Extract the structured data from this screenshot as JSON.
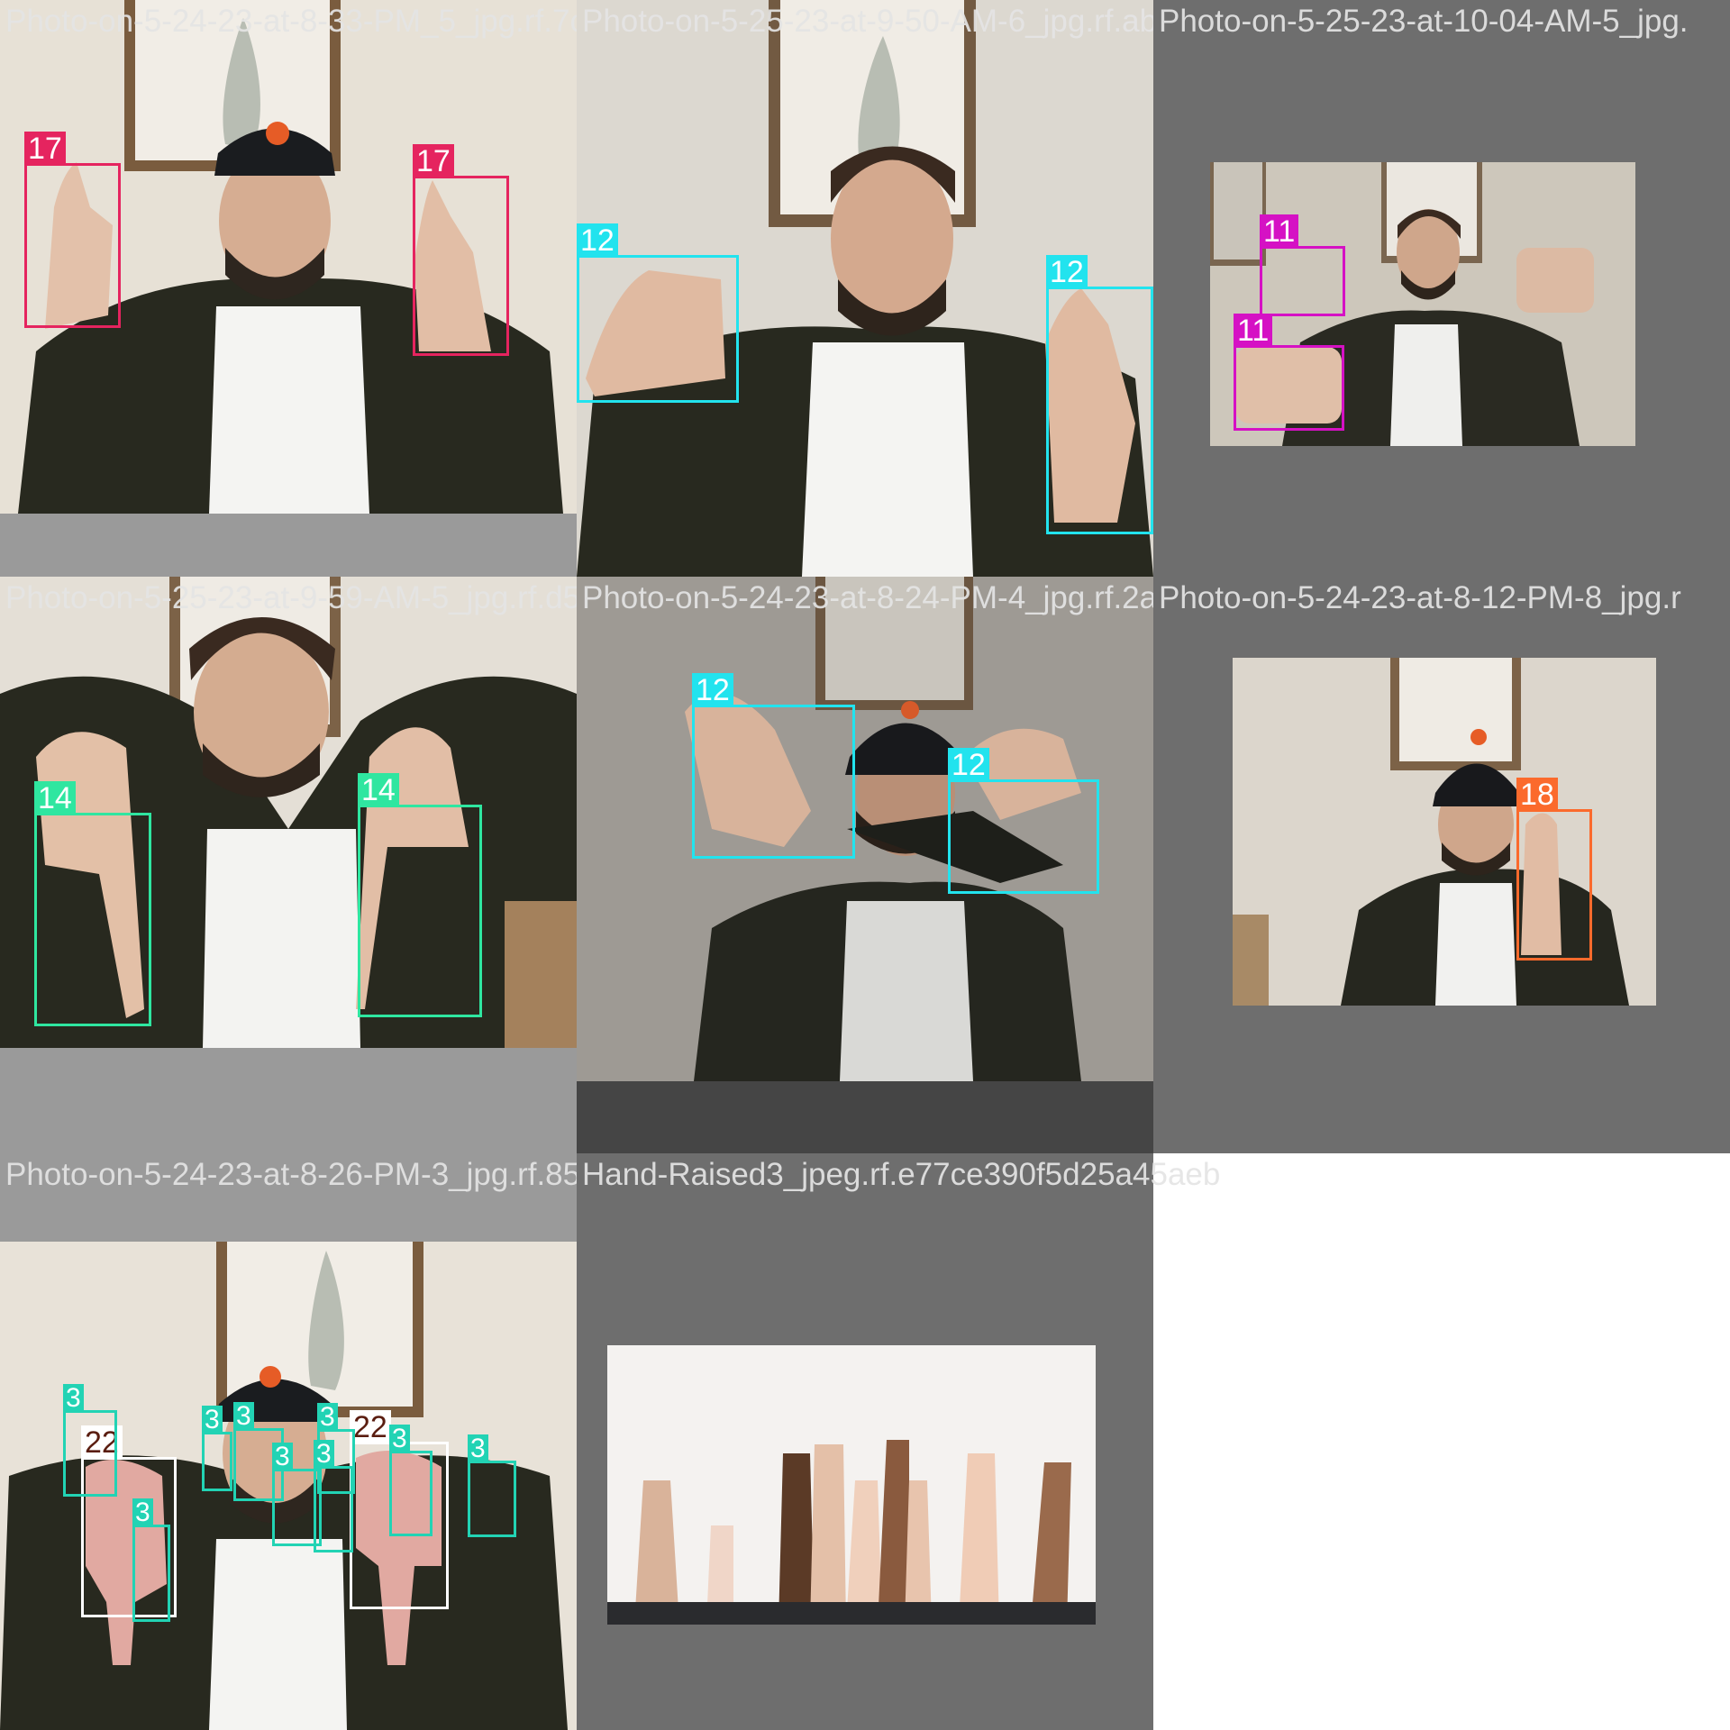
{
  "mosaic": {
    "tiles": [
      {
        "title": "Photo-on-5-24-23-at-8-33-PM_5_jpg.rf.7c8",
        "label_color": "#e5245f",
        "label_text_color": "#ffffff",
        "boxes": [
          "17",
          "17"
        ]
      },
      {
        "title": "Photo-on-5-25-23-at-9-50-AM-6_jpg.rf.abc",
        "label_color": "#22e3ee",
        "label_text_color": "#ffffff",
        "boxes": [
          "12",
          "12"
        ]
      },
      {
        "title": "Photo-on-5-25-23-at-10-04-AM-5_jpg.",
        "label_color": "#d511c4",
        "label_text_color": "#ffffff",
        "boxes": [
          "11",
          "11"
        ]
      },
      {
        "title": "Photo-on-5-25-23-at-9-59-AM-5_jpg.rf.d5",
        "label_color": "#2fe6a0",
        "label_text_color": "#ffffff",
        "boxes": [
          "14",
          "14"
        ]
      },
      {
        "title": "Photo-on-5-24-23-at-8-24-PM-4_jpg.rf.2a",
        "label_color": "#22e3ee",
        "label_text_color": "#ffffff",
        "boxes": [
          "12",
          "12"
        ]
      },
      {
        "title": "Photo-on-5-24-23-at-8-12-PM-8_jpg.r",
        "label_color": "#fb6a2c",
        "label_text_color": "#ffffff",
        "boxes": [
          "18"
        ]
      },
      {
        "title": "Photo-on-5-24-23-at-8-26-PM-3_jpg.rf.85",
        "label_color": "#ffffff",
        "label_text_color": "#5a1d10",
        "boxes": [
          "22",
          "22"
        ]
      },
      {
        "title": "Hand-Raised3_jpeg.rf.e77ce390f5d25a45aeb",
        "label_color": "#22d3b4",
        "label_text_color": "#ffffff",
        "boxes": [
          "3",
          "3",
          "3",
          "3",
          "3",
          "3",
          "3",
          "3",
          "3",
          "3"
        ]
      }
    ]
  }
}
